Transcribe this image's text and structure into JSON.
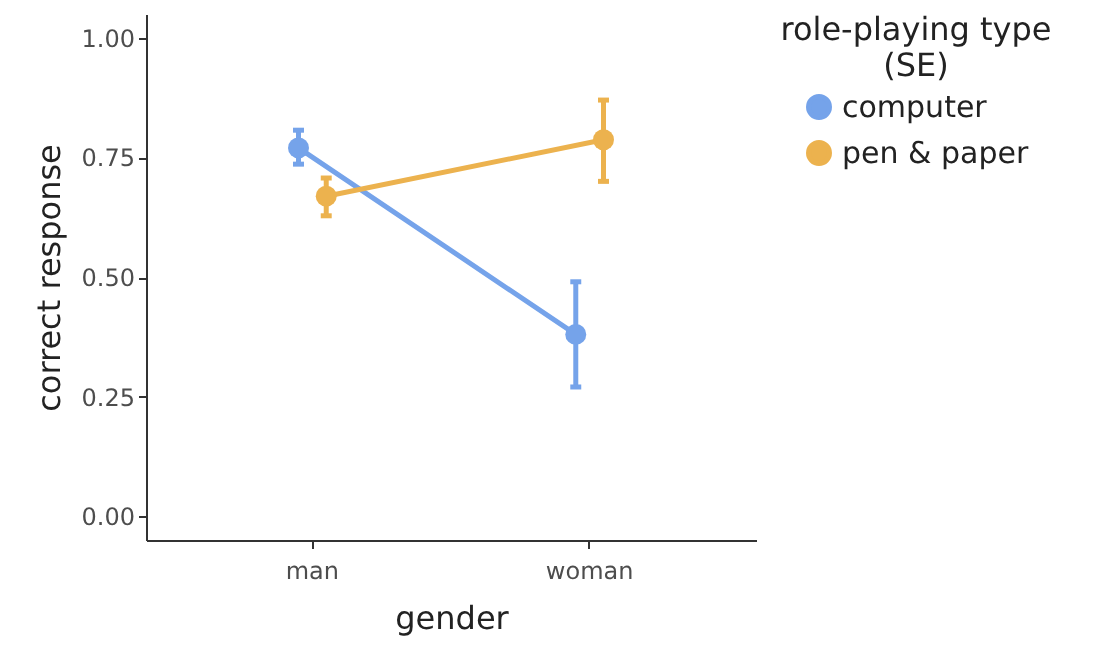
{
  "chart_data": {
    "type": "line",
    "xlabel": "gender",
    "ylabel": "correct response",
    "legend_title": "role-playing type (SE)",
    "categories": [
      "man",
      "woman"
    ],
    "series": [
      {
        "name": "computer",
        "color": "#75a3ea",
        "values": [
          0.77,
          0.38
        ],
        "errors": [
          [
            0.736,
            0.807
          ],
          [
            0.27,
            0.49
          ]
        ]
      },
      {
        "name": "pen & paper",
        "color": "#ecb24e",
        "values": [
          0.669,
          0.787
        ],
        "errors": [
          [
            0.628,
            0.707
          ],
          [
            0.7,
            0.87
          ]
        ]
      }
    ],
    "ylim": [
      -0.05,
      1.05
    ],
    "yticks": [
      {
        "value": 0,
        "label": "0.00"
      },
      {
        "value": 0.25,
        "label": "0.25"
      },
      {
        "value": 0.5,
        "label": "0.50"
      },
      {
        "value": 0.75,
        "label": "0.75"
      },
      {
        "value": 1,
        "label": "1.00"
      }
    ],
    "grid": false,
    "legend": "right",
    "marker": "circle",
    "line_style": "solid"
  }
}
